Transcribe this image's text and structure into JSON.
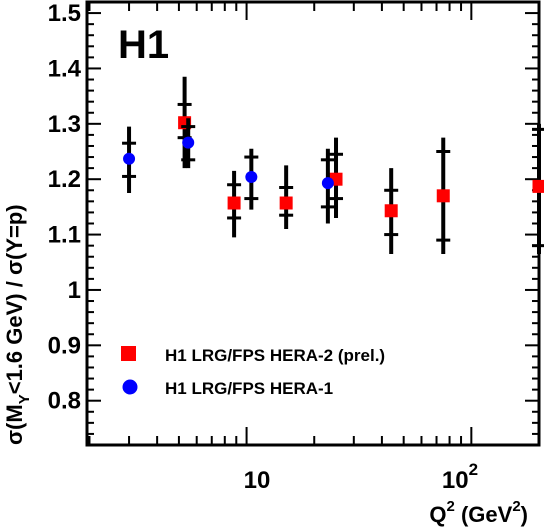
{
  "chart_data": {
    "type": "scatter",
    "experiment_label": "H1",
    "xlabel": {
      "main": "Q",
      "sup1": "2",
      "unit_open": " (GeV",
      "sup2": "2",
      "unit_close": ")"
    },
    "ylabel": "σ(M_Y<1.6 GeV) / σ(Y=p)",
    "ylabel_parts": {
      "a": "σ(M",
      "sub": "Y",
      "b": "<1.6 GeV) / σ(Y=p)"
    },
    "xscale": "log",
    "xlim": [
      1.95,
      200
    ],
    "ylim": [
      0.72,
      1.52
    ],
    "yticks": [
      {
        "v": 0.8,
        "label": "0.8"
      },
      {
        "v": 0.9,
        "label": "0.9"
      },
      {
        "v": 1.0,
        "label": "1"
      },
      {
        "v": 1.1,
        "label": "1.1"
      },
      {
        "v": 1.2,
        "label": "1.2"
      },
      {
        "v": 1.3,
        "label": "1.3"
      },
      {
        "v": 1.4,
        "label": "1.4"
      },
      {
        "v": 1.5,
        "label": "1.5"
      }
    ],
    "xtick_labels": {
      "ten": "10",
      "hundred_base": "10",
      "hundred_exp": "2"
    },
    "legend_position": "bottom-left",
    "series": [
      {
        "name": "H1 LRG/FPS HERA-2 (prel.)",
        "marker": "square",
        "color": "#ff0000",
        "points": [
          {
            "x": 5.3,
            "y": 1.302,
            "stat": [
              1.275,
              1.335
            ],
            "tot": [
              1.22,
              1.385
            ]
          },
          {
            "x": 8.8,
            "y": 1.157,
            "stat": [
              1.13,
              1.19
            ],
            "tot": [
              1.095,
              1.215
            ]
          },
          {
            "x": 15,
            "y": 1.157,
            "stat": [
              1.135,
              1.185
            ],
            "tot": [
              1.11,
              1.225
            ]
          },
          {
            "x": 25,
            "y": 1.2,
            "stat": [
              1.165,
              1.245
            ],
            "tot": [
              1.13,
              1.275
            ]
          },
          {
            "x": 44,
            "y": 1.143,
            "stat": [
              1.1,
              1.18
            ],
            "tot": [
              1.065,
              1.22
            ]
          },
          {
            "x": 75,
            "y": 1.17,
            "stat": [
              1.09,
              1.25
            ],
            "tot": [
              1.065,
              1.275
            ]
          },
          {
            "x": 200,
            "y": 1.187,
            "stat": [
              1.08,
              1.29
            ],
            "tot": [
              1.065,
              1.3
            ]
          }
        ]
      },
      {
        "name": "H1 LRG/FPS HERA-1",
        "marker": "circle",
        "color": "#0000ff",
        "points": [
          {
            "x": 3.0,
            "y": 1.237,
            "stat": [
              1.205,
              1.265
            ],
            "tot": [
              1.175,
              1.295
            ]
          },
          {
            "x": 5.5,
            "y": 1.266,
            "stat": [
              1.235,
              1.295
            ],
            "tot": [
              1.22,
              1.31
            ]
          },
          {
            "x": 10.5,
            "y": 1.204,
            "stat": [
              1.165,
              1.24
            ],
            "tot": [
              1.145,
              1.255
            ]
          },
          {
            "x": 23,
            "y": 1.193,
            "stat": [
              1.15,
              1.235
            ],
            "tot": [
              1.12,
              1.255
            ]
          }
        ]
      }
    ]
  }
}
